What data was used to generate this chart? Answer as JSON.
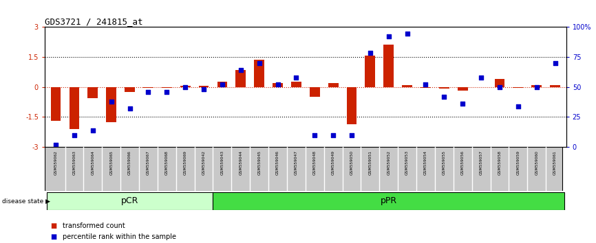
{
  "title": "GDS3721 / 241815_at",
  "samples": [
    "GSM559062",
    "GSM559063",
    "GSM559064",
    "GSM559065",
    "GSM559066",
    "GSM559067",
    "GSM559068",
    "GSM559069",
    "GSM559042",
    "GSM559043",
    "GSM559044",
    "GSM559045",
    "GSM559046",
    "GSM559047",
    "GSM559048",
    "GSM559049",
    "GSM559050",
    "GSM559051",
    "GSM559052",
    "GSM559053",
    "GSM559054",
    "GSM559055",
    "GSM559056",
    "GSM559057",
    "GSM559058",
    "GSM559059",
    "GSM559060",
    "GSM559061"
  ],
  "bar_values": [
    -1.7,
    -2.1,
    -0.55,
    -1.75,
    -0.25,
    -0.05,
    -0.05,
    0.05,
    0.05,
    0.25,
    0.85,
    1.35,
    0.18,
    0.25,
    -0.5,
    0.2,
    -1.85,
    1.55,
    2.1,
    0.1,
    -0.05,
    -0.1,
    -0.2,
    0.0,
    0.4,
    -0.05,
    0.1,
    0.1
  ],
  "scatter_values": [
    2,
    10,
    14,
    38,
    32,
    46,
    46,
    50,
    48,
    52,
    64,
    70,
    52,
    58,
    10,
    10,
    10,
    78,
    92,
    94,
    52,
    42,
    36,
    58,
    50,
    34,
    50,
    70
  ],
  "pCR_count": 9,
  "pPR_count": 19,
  "ylim": [
    -3,
    3
  ],
  "yticks_left": [
    -3,
    -1.5,
    0,
    1.5,
    3
  ],
  "yticks_right": [
    0,
    25,
    50,
    75,
    100
  ],
  "dotted_lines": [
    -1.5,
    1.5
  ],
  "zero_line_color": "#cc2200",
  "bar_color": "#cc2200",
  "scatter_color": "#0000cc",
  "pCR_color": "#ccffcc",
  "pPR_color": "#44dd44",
  "label_bar": "transformed count",
  "label_scatter": "percentile rank within the sample",
  "disease_state_label": "disease state",
  "background_color": "#ffffff",
  "tick_area_color": "#c8c8c8"
}
